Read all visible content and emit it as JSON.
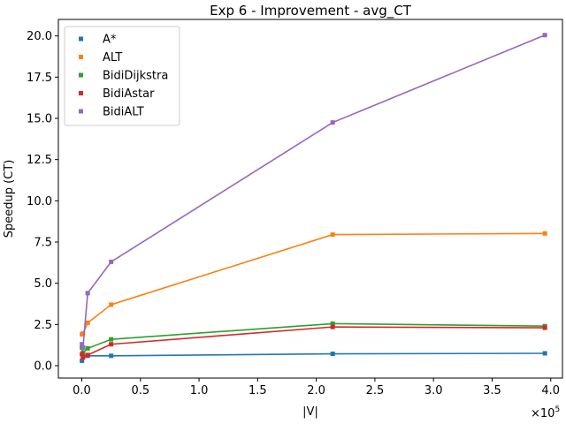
{
  "chart_data": {
    "type": "line",
    "title": "Exp 6 - Improvement - avg_CT",
    "xlabel": "|V|",
    "ylabel": "Speedup (CT)",
    "x_multiplier": "×10",
    "x_multiplier_exp": "5",
    "xlim": [
      -0.2,
      4.1
    ],
    "ylim": [
      -0.75,
      21.0
    ],
    "x_ticks": [
      0.0,
      0.5,
      1.0,
      1.5,
      2.0,
      2.5,
      3.0,
      3.5,
      4.0
    ],
    "x_tick_labels": [
      "0.0",
      "0.5",
      "1.0",
      "1.5",
      "2.0",
      "2.5",
      "3.0",
      "3.5",
      "4.0"
    ],
    "y_ticks": [
      0.0,
      2.5,
      5.0,
      7.5,
      10.0,
      12.5,
      15.0,
      17.5,
      20.0
    ],
    "y_tick_labels": [
      "0.0",
      "2.5",
      "5.0",
      "7.5",
      "10.0",
      "12.5",
      "15.0",
      "17.5",
      "20.0"
    ],
    "grid": false,
    "legend_position": "top-left",
    "x": [
      0.001,
      0.01,
      0.05,
      0.25,
      2.14,
      3.95
    ],
    "series": [
      {
        "name": "A*",
        "color": "#1f77b4",
        "values": [
          0.3,
          0.55,
          0.6,
          0.6,
          0.72,
          0.75
        ]
      },
      {
        "name": "ALT",
        "color": "#ff7f0e",
        "values": [
          1.9,
          1.95,
          2.6,
          3.7,
          7.95,
          8.02
        ]
      },
      {
        "name": "BidiDijkstra",
        "color": "#2ca02c",
        "values": [
          1.1,
          0.8,
          1.05,
          1.6,
          2.55,
          2.4
        ]
      },
      {
        "name": "BidiAstar",
        "color": "#d62728",
        "values": [
          0.7,
          0.5,
          0.65,
          1.3,
          2.35,
          2.3
        ]
      },
      {
        "name": "BidiALT",
        "color": "#9467bd",
        "values": [
          1.3,
          1.1,
          4.4,
          6.3,
          14.75,
          20.05
        ]
      }
    ]
  }
}
